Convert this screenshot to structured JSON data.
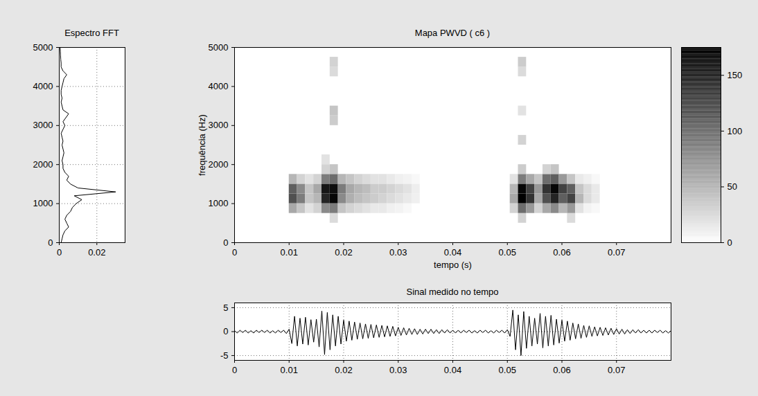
{
  "chart_data": [
    {
      "type": "line",
      "title": "Espectro FFT",
      "orientation": "horizontal",
      "color": "#000000",
      "grid": true,
      "xlim": [
        0,
        0.035
      ],
      "xticks": [
        0,
        0.02
      ],
      "ylim": [
        0,
        5000
      ],
      "yticks": [
        0,
        1000,
        2000,
        3000,
        4000,
        5000
      ],
      "y": [
        0,
        100,
        200,
        300,
        400,
        500,
        600,
        700,
        800,
        900,
        1000,
        1100,
        1200,
        1300,
        1400,
        1500,
        1600,
        1700,
        1800,
        1900,
        2000,
        2100,
        2200,
        2300,
        2400,
        2500,
        2600,
        2700,
        2800,
        2900,
        3000,
        3100,
        3200,
        3300,
        3400,
        3500,
        3600,
        3700,
        3800,
        3900,
        4000,
        4100,
        4200,
        4300,
        4400,
        4500,
        4600,
        4700,
        4800,
        4900,
        5000
      ],
      "values": [
        0.001,
        0.0015,
        0.002,
        0.003,
        0.005,
        0.004,
        0.003,
        0.004,
        0.006,
        0.007,
        0.009,
        0.012,
        0.008,
        0.03,
        0.01,
        0.006,
        0.004,
        0.005,
        0.003,
        0.002,
        0.002,
        0.0015,
        0.002,
        0.0025,
        0.002,
        0.0015,
        0.002,
        0.0015,
        0.001,
        0.002,
        0.003,
        0.002,
        0.0035,
        0.005,
        0.002,
        0.0015,
        0.001,
        0.0015,
        0.001,
        0.001,
        0.0015,
        0.002,
        0.0025,
        0.004,
        0.002,
        0.001,
        0.001,
        0.0008,
        0.0007,
        0.0006,
        0.0005
      ]
    },
    {
      "type": "heatmap",
      "title": "Mapa PWVD ( c6 )",
      "xlabel": "tempo (s)",
      "ylabel": "frequência (Hz)",
      "grid": false,
      "xlim": [
        0,
        0.08
      ],
      "xticks": [
        0,
        0.01,
        0.02,
        0.03,
        0.04,
        0.05,
        0.06,
        0.07
      ],
      "ylim": [
        0,
        5000
      ],
      "yticks": [
        0,
        1000,
        2000,
        3000,
        4000,
        5000
      ],
      "cell_width": 0.0015,
      "cell_height": 250,
      "cells": [
        [
          0.01,
          750,
          60
        ],
        [
          0.01,
          1000,
          120
        ],
        [
          0.01,
          1250,
          110
        ],
        [
          0.01,
          1500,
          50
        ],
        [
          0.0115,
          750,
          40
        ],
        [
          0.0115,
          1000,
          90
        ],
        [
          0.0115,
          1250,
          80
        ],
        [
          0.0115,
          1500,
          30
        ],
        [
          0.013,
          750,
          20
        ],
        [
          0.013,
          1000,
          40
        ],
        [
          0.013,
          1250,
          40
        ],
        [
          0.013,
          1500,
          20
        ],
        [
          0.0145,
          750,
          30
        ],
        [
          0.0145,
          1000,
          50
        ],
        [
          0.0145,
          1250,
          60
        ],
        [
          0.0145,
          1500,
          30
        ],
        [
          0.016,
          750,
          80
        ],
        [
          0.016,
          1000,
          150
        ],
        [
          0.016,
          1250,
          160
        ],
        [
          0.016,
          1500,
          90
        ],
        [
          0.016,
          1750,
          30
        ],
        [
          0.016,
          2000,
          20
        ],
        [
          0.0175,
          500,
          25
        ],
        [
          0.0175,
          750,
          90
        ],
        [
          0.0175,
          1000,
          170
        ],
        [
          0.0175,
          1250,
          165
        ],
        [
          0.0175,
          1500,
          100
        ],
        [
          0.0175,
          1750,
          40
        ],
        [
          0.0175,
          3000,
          35
        ],
        [
          0.0175,
          3250,
          40
        ],
        [
          0.0175,
          4250,
          25
        ],
        [
          0.0175,
          4500,
          30
        ],
        [
          0.019,
          750,
          40
        ],
        [
          0.019,
          1000,
          80
        ],
        [
          0.019,
          1250,
          90
        ],
        [
          0.019,
          1500,
          50
        ],
        [
          0.0205,
          750,
          30
        ],
        [
          0.0205,
          1000,
          55
        ],
        [
          0.0205,
          1250,
          60
        ],
        [
          0.0205,
          1500,
          40
        ],
        [
          0.022,
          750,
          25
        ],
        [
          0.022,
          1000,
          45
        ],
        [
          0.022,
          1250,
          50
        ],
        [
          0.022,
          1500,
          30
        ],
        [
          0.0235,
          750,
          20
        ],
        [
          0.0235,
          1000,
          40
        ],
        [
          0.0235,
          1250,
          45
        ],
        [
          0.0235,
          1500,
          25
        ],
        [
          0.025,
          750,
          15
        ],
        [
          0.025,
          1000,
          35
        ],
        [
          0.025,
          1250,
          35
        ],
        [
          0.025,
          1500,
          20
        ],
        [
          0.0265,
          750,
          15
        ],
        [
          0.0265,
          1000,
          30
        ],
        [
          0.0265,
          1250,
          35
        ],
        [
          0.0265,
          1500,
          20
        ],
        [
          0.028,
          750,
          10
        ],
        [
          0.028,
          1000,
          25
        ],
        [
          0.028,
          1250,
          30
        ],
        [
          0.028,
          1500,
          15
        ],
        [
          0.0295,
          750,
          8
        ],
        [
          0.0295,
          1000,
          20
        ],
        [
          0.0295,
          1250,
          25
        ],
        [
          0.0295,
          1500,
          10
        ],
        [
          0.031,
          750,
          5
        ],
        [
          0.031,
          1000,
          15
        ],
        [
          0.031,
          1250,
          20
        ],
        [
          0.031,
          1500,
          8
        ],
        [
          0.0325,
          1000,
          10
        ],
        [
          0.0325,
          1250,
          12
        ],
        [
          0.0325,
          1500,
          5
        ],
        [
          0.0505,
          750,
          30
        ],
        [
          0.0505,
          1000,
          60
        ],
        [
          0.0505,
          1250,
          50
        ],
        [
          0.0505,
          1500,
          20
        ],
        [
          0.052,
          500,
          30
        ],
        [
          0.052,
          750,
          100
        ],
        [
          0.052,
          1000,
          175
        ],
        [
          0.052,
          1250,
          170
        ],
        [
          0.052,
          1500,
          90
        ],
        [
          0.052,
          1750,
          35
        ],
        [
          0.052,
          2500,
          30
        ],
        [
          0.052,
          3250,
          20
        ],
        [
          0.052,
          4250,
          25
        ],
        [
          0.052,
          4500,
          35
        ],
        [
          0.0535,
          750,
          70
        ],
        [
          0.0535,
          1000,
          140
        ],
        [
          0.0535,
          1250,
          130
        ],
        [
          0.0535,
          1500,
          60
        ],
        [
          0.055,
          750,
          30
        ],
        [
          0.055,
          1000,
          60
        ],
        [
          0.055,
          1250,
          70
        ],
        [
          0.055,
          1500,
          40
        ],
        [
          0.0565,
          750,
          60
        ],
        [
          0.0565,
          1000,
          120
        ],
        [
          0.0565,
          1250,
          140
        ],
        [
          0.0565,
          1500,
          100
        ],
        [
          0.0565,
          1750,
          30
        ],
        [
          0.058,
          750,
          80
        ],
        [
          0.058,
          1000,
          150
        ],
        [
          0.058,
          1250,
          170
        ],
        [
          0.058,
          1500,
          110
        ],
        [
          0.058,
          1750,
          40
        ],
        [
          0.0595,
          750,
          50
        ],
        [
          0.0595,
          1000,
          110
        ],
        [
          0.0595,
          1250,
          130
        ],
        [
          0.0595,
          1500,
          70
        ],
        [
          0.061,
          500,
          25
        ],
        [
          0.061,
          750,
          70
        ],
        [
          0.061,
          1000,
          130
        ],
        [
          0.061,
          1250,
          110
        ],
        [
          0.061,
          1500,
          40
        ],
        [
          0.0625,
          750,
          20
        ],
        [
          0.0625,
          1000,
          50
        ],
        [
          0.0625,
          1250,
          40
        ],
        [
          0.0625,
          1500,
          15
        ],
        [
          0.064,
          750,
          8
        ],
        [
          0.064,
          1000,
          25
        ],
        [
          0.064,
          1250,
          25
        ],
        [
          0.064,
          1500,
          10
        ],
        [
          0.0655,
          750,
          5
        ],
        [
          0.0655,
          1000,
          15
        ],
        [
          0.0655,
          1250,
          15
        ],
        [
          0.0655,
          1500,
          5
        ]
      ],
      "colorbar_range": [
        0,
        175
      ],
      "colorbar_ticks": [
        0,
        50,
        100,
        150
      ]
    },
    {
      "type": "line",
      "title": "Sinal medido no tempo",
      "color": "#000000",
      "grid": true,
      "xlim": [
        0,
        0.08
      ],
      "xticks": [
        0,
        0.01,
        0.02,
        0.03,
        0.04,
        0.05,
        0.06,
        0.07
      ],
      "ylim": [
        -6,
        6
      ],
      "yticks": [
        -5,
        0,
        5
      ],
      "x": [
        0,
        0.0005,
        0.001,
        0.0015,
        0.002,
        0.0025,
        0.003,
        0.0035,
        0.004,
        0.0045,
        0.005,
        0.0055,
        0.006,
        0.0065,
        0.007,
        0.0075,
        0.008,
        0.0085,
        0.009,
        0.0095,
        0.01,
        0.0105,
        0.011,
        0.0115,
        0.012,
        0.0125,
        0.013,
        0.0135,
        0.014,
        0.0145,
        0.015,
        0.0155,
        0.016,
        0.0165,
        0.017,
        0.0175,
        0.018,
        0.0185,
        0.019,
        0.0195,
        0.02,
        0.0205,
        0.021,
        0.0215,
        0.022,
        0.0225,
        0.023,
        0.0235,
        0.024,
        0.0245,
        0.025,
        0.0255,
        0.026,
        0.0265,
        0.027,
        0.0275,
        0.028,
        0.0285,
        0.029,
        0.0295,
        0.03,
        0.0305,
        0.031,
        0.0315,
        0.032,
        0.0325,
        0.033,
        0.0335,
        0.034,
        0.0345,
        0.035,
        0.0355,
        0.036,
        0.0365,
        0.037,
        0.0375,
        0.038,
        0.0385,
        0.039,
        0.0395,
        0.04,
        0.0405,
        0.041,
        0.0415,
        0.042,
        0.0425,
        0.043,
        0.0435,
        0.044,
        0.0445,
        0.045,
        0.0455,
        0.046,
        0.0465,
        0.047,
        0.0475,
        0.048,
        0.0485,
        0.049,
        0.0495,
        0.05,
        0.0505,
        0.051,
        0.0515,
        0.052,
        0.0525,
        0.053,
        0.0535,
        0.054,
        0.0545,
        0.055,
        0.0555,
        0.056,
        0.0565,
        0.057,
        0.0575,
        0.058,
        0.0585,
        0.059,
        0.0595,
        0.06,
        0.0605,
        0.061,
        0.0615,
        0.062,
        0.0625,
        0.063,
        0.0635,
        0.064,
        0.0645,
        0.065,
        0.0655,
        0.066,
        0.0665,
        0.067,
        0.0675,
        0.068,
        0.0685,
        0.069,
        0.0695,
        0.07,
        0.0705,
        0.071,
        0.0715,
        0.072,
        0.0725,
        0.073,
        0.0735,
        0.074,
        0.0745,
        0.075,
        0.0755,
        0.076,
        0.0765,
        0.077,
        0.0775,
        0.078,
        0.0785,
        0.079,
        0.0795,
        0.08
      ],
      "values": [
        0.2,
        -0.3,
        0.3,
        -0.2,
        0.3,
        -0.3,
        0.2,
        -0.3,
        0.3,
        -0.2,
        0.3,
        -0.2,
        0.3,
        -0.3,
        0.2,
        -0.3,
        0.3,
        -0.2,
        0.3,
        -0.4,
        0.5,
        -2.5,
        3.2,
        -3.0,
        2.8,
        -2.6,
        3.0,
        -2.8,
        2.5,
        -2.2,
        2.6,
        -3.2,
        4.3,
        -4.8,
        4.0,
        -3.8,
        3.5,
        -3.0,
        3.2,
        -2.6,
        2.4,
        -2.0,
        2.2,
        -1.8,
        2.0,
        -1.6,
        1.8,
        -1.5,
        1.6,
        -1.4,
        1.5,
        -1.3,
        1.4,
        -1.2,
        1.3,
        -1.1,
        1.2,
        -1.0,
        1.1,
        -0.9,
        0.9,
        -0.8,
        0.8,
        -0.7,
        0.7,
        -0.6,
        0.6,
        -0.6,
        0.5,
        -0.5,
        0.5,
        -0.4,
        0.5,
        -0.4,
        0.4,
        -0.4,
        0.4,
        -0.3,
        0.4,
        -0.3,
        0.3,
        -0.3,
        0.3,
        -0.3,
        0.3,
        -0.2,
        0.3,
        -0.3,
        0.2,
        -0.3,
        0.3,
        -0.2,
        0.3,
        -0.3,
        0.2,
        -0.3,
        0.3,
        -0.2,
        0.3,
        -0.3,
        0.4,
        -1.0,
        4.5,
        -3.8,
        3.5,
        -5.0,
        4.2,
        -3.5,
        3.2,
        -3.0,
        2.8,
        -2.6,
        3.8,
        -3.4,
        3.2,
        -3.0,
        3.4,
        -2.8,
        2.6,
        -2.4,
        2.4,
        -2.0,
        2.2,
        -1.8,
        1.8,
        -1.5,
        1.6,
        -1.4,
        1.3,
        -1.2,
        1.2,
        -1.0,
        1.0,
        -0.9,
        0.9,
        -0.8,
        0.8,
        -0.7,
        0.7,
        -0.6,
        0.6,
        -0.5,
        0.5,
        -0.5,
        0.4,
        -0.4,
        0.4,
        -0.3,
        0.4,
        -0.3,
        0.3,
        -0.3,
        0.3,
        -0.3,
        0.3,
        -0.2,
        0.3,
        -0.3,
        0.2,
        -0.3,
        0.2
      ]
    }
  ]
}
